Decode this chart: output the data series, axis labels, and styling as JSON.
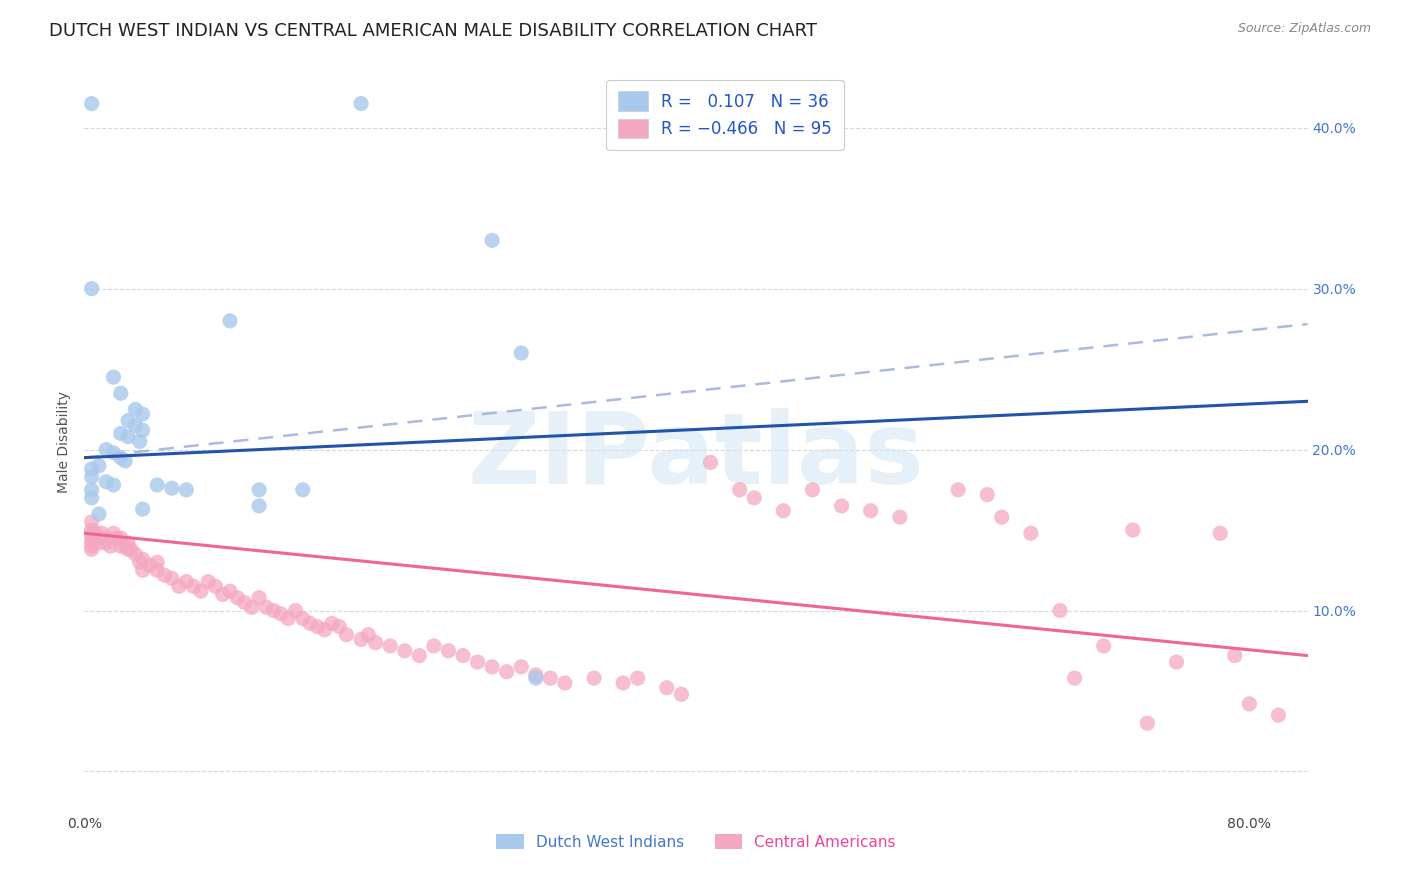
{
  "title": "DUTCH WEST INDIAN VS CENTRAL AMERICAN MALE DISABILITY CORRELATION CHART",
  "source": "Source: ZipAtlas.com",
  "ylabel": "Male Disability",
  "watermark": "ZIPatlas",
  "xlim": [
    0.0,
    0.84
  ],
  "ylim": [
    -0.025,
    0.435
  ],
  "legend_label1": "Dutch West Indians",
  "legend_label2": "Central Americans",
  "color_blue": "#a8c8ec",
  "color_pink": "#f4a8c0",
  "color_blue_line": "#2255aa",
  "color_pink_line": "#ee6699",
  "color_blue_dashed": "#aabbdd",
  "scatter_blue": [
    [
      0.005,
      0.415
    ],
    [
      0.19,
      0.415
    ],
    [
      0.28,
      0.33
    ],
    [
      0.005,
      0.3
    ],
    [
      0.1,
      0.28
    ],
    [
      0.3,
      0.26
    ],
    [
      0.02,
      0.245
    ],
    [
      0.025,
      0.235
    ],
    [
      0.035,
      0.225
    ],
    [
      0.04,
      0.222
    ],
    [
      0.03,
      0.218
    ],
    [
      0.035,
      0.215
    ],
    [
      0.04,
      0.212
    ],
    [
      0.025,
      0.21
    ],
    [
      0.03,
      0.208
    ],
    [
      0.038,
      0.205
    ],
    [
      0.015,
      0.2
    ],
    [
      0.02,
      0.198
    ],
    [
      0.025,
      0.195
    ],
    [
      0.028,
      0.193
    ],
    [
      0.01,
      0.19
    ],
    [
      0.005,
      0.188
    ],
    [
      0.005,
      0.183
    ],
    [
      0.015,
      0.18
    ],
    [
      0.02,
      0.178
    ],
    [
      0.05,
      0.178
    ],
    [
      0.06,
      0.176
    ],
    [
      0.07,
      0.175
    ],
    [
      0.12,
      0.175
    ],
    [
      0.12,
      0.165
    ],
    [
      0.04,
      0.163
    ],
    [
      0.01,
      0.16
    ],
    [
      0.15,
      0.175
    ],
    [
      0.31,
      0.058
    ],
    [
      0.005,
      0.175
    ],
    [
      0.005,
      0.17
    ]
  ],
  "scatter_pink": [
    [
      0.005,
      0.155
    ],
    [
      0.005,
      0.15
    ],
    [
      0.005,
      0.148
    ],
    [
      0.005,
      0.145
    ],
    [
      0.005,
      0.143
    ],
    [
      0.005,
      0.14
    ],
    [
      0.005,
      0.138
    ],
    [
      0.008,
      0.148
    ],
    [
      0.01,
      0.145
    ],
    [
      0.01,
      0.142
    ],
    [
      0.012,
      0.148
    ],
    [
      0.015,
      0.145
    ],
    [
      0.015,
      0.142
    ],
    [
      0.018,
      0.14
    ],
    [
      0.02,
      0.148
    ],
    [
      0.022,
      0.145
    ],
    [
      0.025,
      0.14
    ],
    [
      0.025,
      0.145
    ],
    [
      0.028,
      0.14
    ],
    [
      0.03,
      0.138
    ],
    [
      0.03,
      0.142
    ],
    [
      0.032,
      0.138
    ],
    [
      0.035,
      0.135
    ],
    [
      0.038,
      0.13
    ],
    [
      0.04,
      0.132
    ],
    [
      0.04,
      0.125
    ],
    [
      0.045,
      0.128
    ],
    [
      0.05,
      0.13
    ],
    [
      0.05,
      0.125
    ],
    [
      0.055,
      0.122
    ],
    [
      0.06,
      0.12
    ],
    [
      0.065,
      0.115
    ],
    [
      0.07,
      0.118
    ],
    [
      0.075,
      0.115
    ],
    [
      0.08,
      0.112
    ],
    [
      0.085,
      0.118
    ],
    [
      0.09,
      0.115
    ],
    [
      0.095,
      0.11
    ],
    [
      0.1,
      0.112
    ],
    [
      0.105,
      0.108
    ],
    [
      0.11,
      0.105
    ],
    [
      0.115,
      0.102
    ],
    [
      0.12,
      0.108
    ],
    [
      0.125,
      0.102
    ],
    [
      0.13,
      0.1
    ],
    [
      0.135,
      0.098
    ],
    [
      0.14,
      0.095
    ],
    [
      0.145,
      0.1
    ],
    [
      0.15,
      0.095
    ],
    [
      0.155,
      0.092
    ],
    [
      0.16,
      0.09
    ],
    [
      0.165,
      0.088
    ],
    [
      0.17,
      0.092
    ],
    [
      0.175,
      0.09
    ],
    [
      0.18,
      0.085
    ],
    [
      0.19,
      0.082
    ],
    [
      0.195,
      0.085
    ],
    [
      0.2,
      0.08
    ],
    [
      0.21,
      0.078
    ],
    [
      0.22,
      0.075
    ],
    [
      0.23,
      0.072
    ],
    [
      0.24,
      0.078
    ],
    [
      0.25,
      0.075
    ],
    [
      0.26,
      0.072
    ],
    [
      0.27,
      0.068
    ],
    [
      0.28,
      0.065
    ],
    [
      0.29,
      0.062
    ],
    [
      0.3,
      0.065
    ],
    [
      0.31,
      0.06
    ],
    [
      0.32,
      0.058
    ],
    [
      0.33,
      0.055
    ],
    [
      0.35,
      0.058
    ],
    [
      0.37,
      0.055
    ],
    [
      0.38,
      0.058
    ],
    [
      0.4,
      0.052
    ],
    [
      0.41,
      0.048
    ],
    [
      0.43,
      0.192
    ],
    [
      0.45,
      0.175
    ],
    [
      0.46,
      0.17
    ],
    [
      0.48,
      0.162
    ],
    [
      0.5,
      0.175
    ],
    [
      0.52,
      0.165
    ],
    [
      0.54,
      0.162
    ],
    [
      0.56,
      0.158
    ],
    [
      0.6,
      0.175
    ],
    [
      0.62,
      0.172
    ],
    [
      0.63,
      0.158
    ],
    [
      0.65,
      0.148
    ],
    [
      0.67,
      0.1
    ],
    [
      0.68,
      0.058
    ],
    [
      0.7,
      0.078
    ],
    [
      0.72,
      0.15
    ],
    [
      0.73,
      0.03
    ],
    [
      0.75,
      0.068
    ],
    [
      0.78,
      0.148
    ],
    [
      0.79,
      0.072
    ],
    [
      0.8,
      0.042
    ],
    [
      0.82,
      0.035
    ]
  ],
  "blue_line": [
    0.0,
    0.195,
    0.84,
    0.23
  ],
  "blue_dashed": [
    0.0,
    0.195,
    0.84,
    0.278
  ],
  "pink_line": [
    0.0,
    0.148,
    0.84,
    0.072
  ],
  "grid_color": "#d8d8d8",
  "background_color": "#ffffff",
  "title_fontsize": 13,
  "axis_label_fontsize": 10,
  "tick_fontsize": 10,
  "source_fontsize": 9
}
